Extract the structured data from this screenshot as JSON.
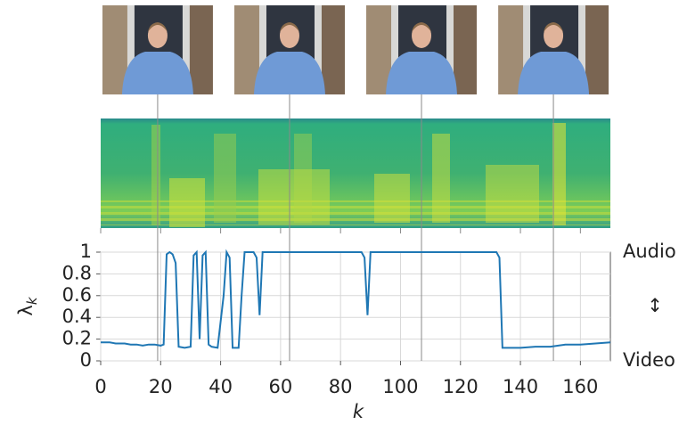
{
  "chart_data": {
    "type": "line",
    "xlabel": "k",
    "ylabel": "λ",
    "ylabel_sub": "k",
    "annotations": {
      "top": "Audio",
      "middle": "↕",
      "bottom": "Video"
    },
    "x": [
      0,
      3,
      5,
      8,
      10,
      12,
      14,
      16,
      18,
      20,
      21,
      22,
      23,
      24,
      25,
      26,
      28,
      30,
      31,
      32,
      33,
      34,
      35,
      36,
      37,
      39,
      41,
      42,
      43,
      44,
      46,
      47,
      48,
      51,
      52,
      53,
      54,
      87,
      88,
      89,
      90,
      132,
      133,
      134,
      136,
      140,
      145,
      150,
      155,
      160,
      165,
      170
    ],
    "series": [
      {
        "color": "#1f77b4",
        "values": [
          0.17,
          0.17,
          0.16,
          0.16,
          0.15,
          0.15,
          0.14,
          0.15,
          0.15,
          0.14,
          0.15,
          0.98,
          1.0,
          0.98,
          0.9,
          0.13,
          0.12,
          0.13,
          0.97,
          1.0,
          0.2,
          0.97,
          1.0,
          0.15,
          0.13,
          0.12,
          0.6,
          1.0,
          0.95,
          0.12,
          0.12,
          0.6,
          1.0,
          1.0,
          0.95,
          0.42,
          1.0,
          1.0,
          0.95,
          0.42,
          1.0,
          1.0,
          0.95,
          0.12,
          0.12,
          0.12,
          0.13,
          0.13,
          0.15,
          0.15,
          0.16,
          0.17
        ]
      }
    ],
    "frame_k": [
      19,
      63,
      107,
      151
    ],
    "xlim": [
      0,
      170
    ],
    "ylim": [
      0,
      1
    ],
    "xticks": [
      0,
      20,
      40,
      60,
      80,
      100,
      120,
      140,
      160
    ],
    "yticks": [
      0,
      0.2,
      0.4,
      0.6,
      0.8,
      1
    ],
    "grid": true
  }
}
